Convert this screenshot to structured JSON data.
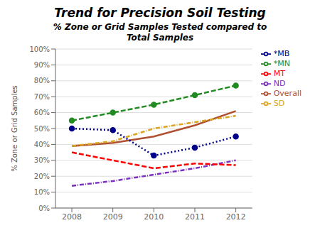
{
  "chart_data": {
    "type": "line",
    "title": "Trend for Precision Soil Testing",
    "subtitle": "% Zone or Grid Samples Tested compared to\nTotal Samples",
    "y_label": "% Zone or Grid Samples",
    "x": [
      2008,
      2009,
      2010,
      2011,
      2012
    ],
    "xlim": [
      2007.6,
      2012.4
    ],
    "xticks": [
      2008,
      2009,
      2010,
      2011,
      2012
    ],
    "ylim": [
      0,
      100
    ],
    "yticks": [
      {
        "value": 0,
        "label": "0%"
      },
      {
        "value": 10,
        "label": "10%"
      },
      {
        "value": 20,
        "label": "20%"
      },
      {
        "value": 30,
        "label": "30%"
      },
      {
        "value": 40,
        "label": "40%"
      },
      {
        "value": 50,
        "label": "50%"
      },
      {
        "value": 60,
        "label": "60%"
      },
      {
        "value": 70,
        "label": "70%"
      },
      {
        "value": 80,
        "label": "80%"
      },
      {
        "value": 90,
        "label": "90%"
      },
      {
        "value": 100,
        "label": "100%"
      }
    ],
    "grid": true,
    "legend": "right",
    "series": [
      {
        "name": "Overall",
        "color": "#B05030",
        "line_style": "solid",
        "values": [
          39,
          41,
          45,
          52,
          61
        ]
      },
      {
        "name": "*MN",
        "color": "#228B22",
        "line_style": "dashed",
        "marker": "circle",
        "values": [
          55,
          60,
          65,
          71,
          77
        ]
      },
      {
        "name": "SD",
        "color": "#DAA520",
        "line_style": "dashdot",
        "values": [
          39,
          42,
          50,
          54,
          58
        ]
      },
      {
        "name": "ND",
        "color": "#7B2FBE",
        "line_style": "dashdot",
        "values": [
          14,
          17,
          21,
          25,
          30
        ]
      },
      {
        "name": "MT",
        "color": "#FF0000",
        "line_style": "dashed",
        "values": [
          35,
          30,
          25,
          28,
          27
        ]
      },
      {
        "name": "*MB",
        "color": "#00008B",
        "line_style": "dotted",
        "marker": "circle",
        "values": [
          50,
          49,
          33,
          38,
          45
        ]
      }
    ]
  }
}
